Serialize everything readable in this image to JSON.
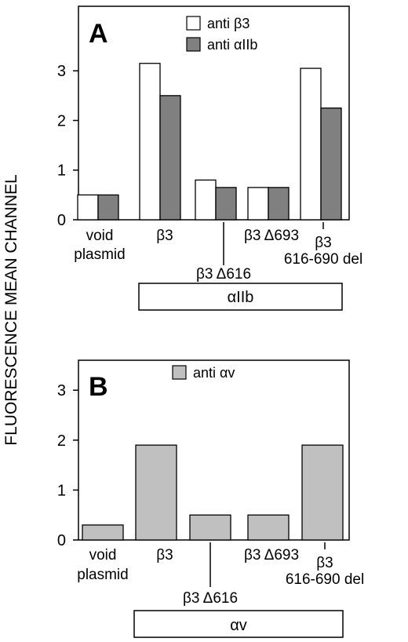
{
  "ylabel": "FLUORESCENCE MEAN CHANNEL",
  "chart_data": [
    {
      "type": "bar",
      "panel_label": "A",
      "categories": [
        "void plasmid",
        "β3",
        "β3 Δ616",
        "β3 Δ693",
        "β3 616-690 del"
      ],
      "category_labels": [
        {
          "lines": [
            "void",
            "plasmid"
          ]
        },
        {
          "lines": [
            "β3"
          ]
        },
        {
          "lines": [
            "β3 Δ616"
          ]
        },
        {
          "lines": [
            "β3 Δ693"
          ]
        },
        {
          "lines": [
            "β3",
            "616-690  del"
          ]
        }
      ],
      "series": [
        {
          "name": "anti β3",
          "color": "#ffffff",
          "values": [
            0.5,
            3.15,
            0.8,
            0.65,
            3.05
          ]
        },
        {
          "name": "anti αIIb",
          "color": "#808080",
          "values": [
            0.5,
            2.5,
            0.65,
            0.65,
            2.25
          ]
        }
      ],
      "yticks": [
        "0",
        "1",
        "2",
        "3"
      ],
      "ylim": [
        0,
        4.3
      ],
      "legend": "top-right",
      "group_box_label": "αIIb"
    },
    {
      "type": "bar",
      "panel_label": "B",
      "categories": [
        "void plasmid",
        "β3",
        "β3 Δ616",
        "β3 Δ693",
        "β3 616-690 del"
      ],
      "category_labels": [
        {
          "lines": [
            "void",
            "plasmid"
          ]
        },
        {
          "lines": [
            "β3"
          ]
        },
        {
          "lines": [
            "β3 Δ616"
          ]
        },
        {
          "lines": [
            "β3 Δ693"
          ]
        },
        {
          "lines": [
            "β3",
            "616-690  del"
          ]
        }
      ],
      "series": [
        {
          "name": "anti αv",
          "color": "#c0c0c0",
          "values": [
            0.3,
            1.9,
            0.5,
            0.5,
            1.9
          ]
        }
      ],
      "yticks": [
        "0",
        "1",
        "2",
        "3"
      ],
      "ylim": [
        0,
        3.6
      ],
      "legend": "top-center",
      "group_box_label": "αv"
    }
  ]
}
